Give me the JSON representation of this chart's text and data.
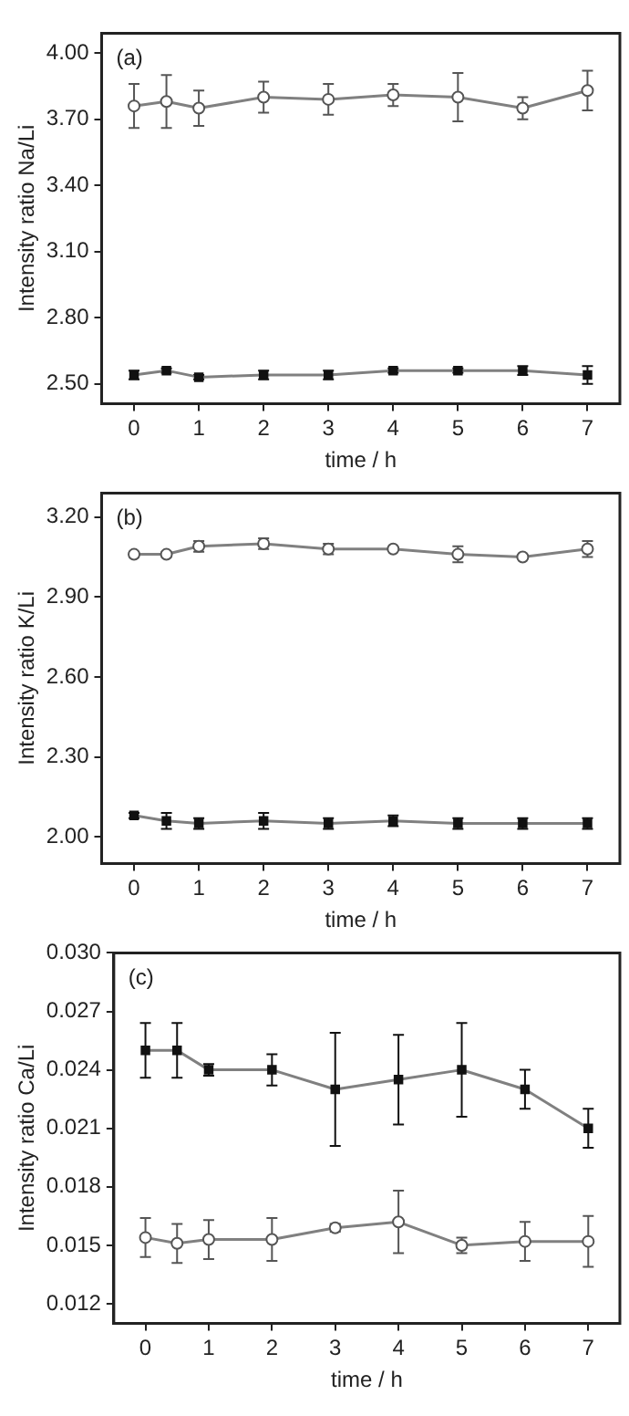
{
  "chart_data": [
    {
      "type": "line",
      "ylabel": "Intensity ratio Na/Li",
      "xlabel": "time / h",
      "annotations": [
        "(a)"
      ],
      "x": [
        0,
        0.5,
        1,
        2,
        3,
        4,
        5,
        6,
        7
      ],
      "xlim": [
        -0.5,
        7.5
      ],
      "xticks": [
        0,
        1,
        2,
        3,
        4,
        5,
        6,
        7
      ],
      "ylim": [
        2.41,
        4.09
      ],
      "yticks": [
        {
          "value": 2.5,
          "label": "2.50"
        },
        {
          "value": 2.8,
          "label": "2.80"
        },
        {
          "value": 3.1,
          "label": "3.10"
        },
        {
          "value": 3.4,
          "label": "3.40"
        },
        {
          "value": 3.7,
          "label": "3.70"
        },
        {
          "value": 4.0,
          "label": "4.00"
        }
      ],
      "grid": false,
      "legend": false,
      "line_style": "solid",
      "series": [
        {
          "color": "#555555",
          "marker": "circle",
          "values": [
            3.76,
            3.78,
            3.75,
            3.8,
            3.79,
            3.81,
            3.8,
            3.75,
            3.83
          ],
          "errors": [
            0.1,
            0.12,
            0.08,
            0.07,
            0.07,
            0.05,
            0.11,
            0.05,
            0.09
          ]
        },
        {
          "color": "#111111",
          "marker": "square",
          "values": [
            2.54,
            2.56,
            2.53,
            2.54,
            2.54,
            2.56,
            2.56,
            2.56,
            2.54
          ],
          "errors": [
            0.02,
            0.01,
            0.01,
            0.02,
            0.02,
            0.01,
            0.01,
            0.02,
            0.04
          ]
        }
      ]
    },
    {
      "type": "line",
      "ylabel": "Intensity ratio K/Li",
      "xlabel": "time / h",
      "annotations": [
        "(b)"
      ],
      "x": [
        0,
        0.5,
        1,
        2,
        3,
        4,
        5,
        6,
        7
      ],
      "xlim": [
        -0.5,
        7.5
      ],
      "xticks": [
        0,
        1,
        2,
        3,
        4,
        5,
        6,
        7
      ],
      "ylim": [
        1.9,
        3.29
      ],
      "yticks": [
        {
          "value": 2.0,
          "label": "2.00"
        },
        {
          "value": 2.3,
          "label": "2.30"
        },
        {
          "value": 2.6,
          "label": "2.60"
        },
        {
          "value": 2.9,
          "label": "2.90"
        },
        {
          "value": 3.2,
          "label": "3.20"
        }
      ],
      "grid": false,
      "legend": false,
      "line_style": "solid",
      "series": [
        {
          "color": "#555555",
          "marker": "circle",
          "values": [
            3.06,
            3.06,
            3.09,
            3.1,
            3.08,
            3.08,
            3.06,
            3.05,
            3.08
          ],
          "errors": [
            0.01,
            0.01,
            0.02,
            0.02,
            0.02,
            0.005,
            0.03,
            0.005,
            0.03
          ]
        },
        {
          "color": "#111111",
          "marker": "square",
          "values": [
            2.08,
            2.06,
            2.05,
            2.06,
            2.05,
            2.06,
            2.05,
            2.05,
            2.05
          ],
          "errors": [
            0.01,
            0.03,
            0.02,
            0.03,
            0.02,
            0.02,
            0.02,
            0.02,
            0.02
          ]
        }
      ]
    },
    {
      "type": "line",
      "ylabel": "Intensity ratio Ca/Li",
      "xlabel": "time / h",
      "annotations": [
        "(c)"
      ],
      "x": [
        0,
        0.5,
        1,
        2,
        3,
        4,
        5,
        6,
        7
      ],
      "xlim": [
        -0.5,
        7.5
      ],
      "xticks": [
        0,
        1,
        2,
        3,
        4,
        5,
        6,
        7
      ],
      "ylim": [
        0.011,
        0.03
      ],
      "yticks": [
        {
          "value": 0.012,
          "label": "0.012"
        },
        {
          "value": 0.015,
          "label": "0.015"
        },
        {
          "value": 0.018,
          "label": "0.018"
        },
        {
          "value": 0.021,
          "label": "0.021"
        },
        {
          "value": 0.024,
          "label": "0.024"
        },
        {
          "value": 0.027,
          "label": "0.027"
        },
        {
          "value": 0.03,
          "label": "0.030"
        }
      ],
      "grid": false,
      "legend": false,
      "line_style": "solid",
      "series": [
        {
          "color": "#111111",
          "marker": "square",
          "values": [
            0.025,
            0.025,
            0.024,
            0.024,
            0.023,
            0.0235,
            0.024,
            0.023,
            0.021
          ],
          "errors": [
            0.0014,
            0.0014,
            0.0003,
            0.0008,
            0.0029,
            0.0023,
            0.0024,
            0.001,
            0.001
          ]
        },
        {
          "color": "#555555",
          "marker": "circle",
          "values": [
            0.0154,
            0.0151,
            0.0153,
            0.0153,
            0.0159,
            0.0162,
            0.015,
            0.0152,
            0.0152
          ],
          "errors": [
            0.001,
            0.001,
            0.001,
            0.0011,
            0.0002,
            0.0016,
            0.0004,
            0.001,
            0.0013
          ]
        }
      ]
    }
  ]
}
